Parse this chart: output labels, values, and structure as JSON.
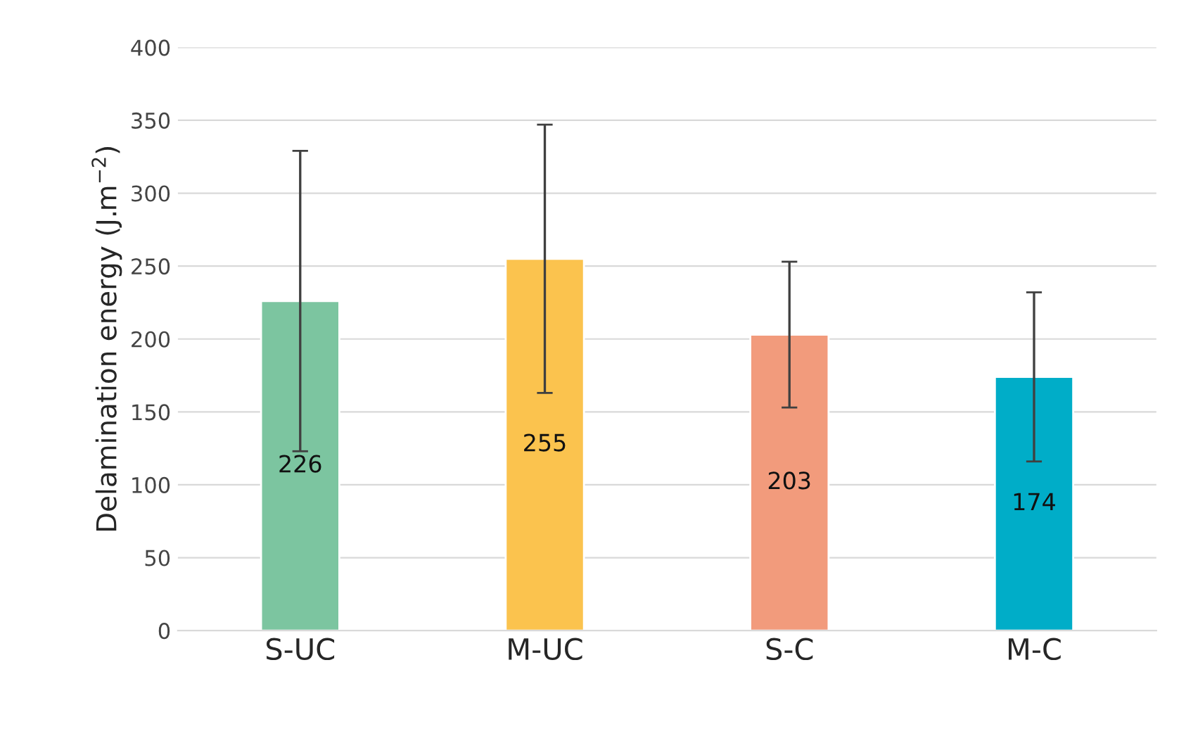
{
  "chart_data": {
    "type": "bar",
    "ylabel": "Delamination energy (J.m$^{−2}$)",
    "categories": [
      "S-UC",
      "M-UC",
      "S-C",
      "M-C"
    ],
    "values": [
      226,
      255,
      203,
      174
    ],
    "colors": [
      "#7cc5a0",
      "#fbc34e",
      "#f29b7c",
      "#00adc8"
    ],
    "errors": [
      103,
      92,
      50,
      58
    ],
    "data_labels": true,
    "ylim": [
      0,
      400
    ],
    "yticks": [
      0,
      50,
      100,
      150,
      200,
      250,
      300,
      350,
      400
    ],
    "grid": "y"
  }
}
